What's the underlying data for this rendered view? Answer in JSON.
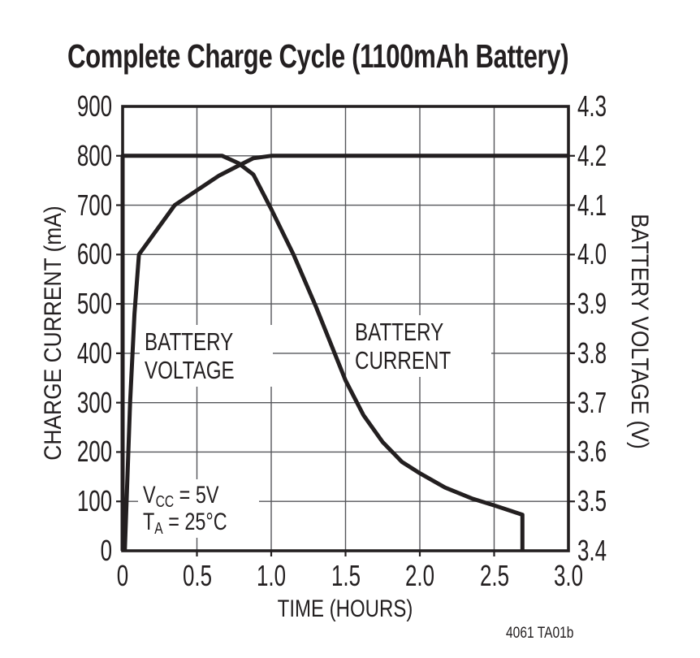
{
  "chart_data": {
    "type": "line",
    "title": "Complete Charge Cycle (1100mAh Battery)",
    "xlabel": "TIME (HOURS)",
    "x_range": [
      0,
      3
    ],
    "x_ticks": [
      "0",
      "0.5",
      "1.0",
      "1.5",
      "2.0",
      "2.5",
      "3.0"
    ],
    "left_axis": {
      "label": "CHARGE CURRENT (mA)",
      "range": [
        0,
        900
      ],
      "ticks": [
        "900",
        "800",
        "700",
        "600",
        "500",
        "400",
        "300",
        "200",
        "100",
        "0"
      ]
    },
    "right_axis": {
      "label": "BATTERY VOLTAGE (V)",
      "range": [
        3.4,
        4.3
      ],
      "ticks": [
        "4.3",
        "4.2",
        "4.1",
        "4.0",
        "3.9",
        "3.8",
        "3.7",
        "3.6",
        "3.5",
        "3.4"
      ]
    },
    "grid": true,
    "legend_position": "none",
    "series": [
      {
        "name": "battery-voltage",
        "axis": "right",
        "points": [
          [
            0.015,
            3.4
          ],
          [
            0.05,
            3.7
          ],
          [
            0.08,
            3.88
          ],
          [
            0.11,
            4.0
          ],
          [
            0.35,
            4.1
          ],
          [
            0.5,
            4.13
          ],
          [
            0.65,
            4.16
          ],
          [
            0.78,
            4.18
          ],
          [
            0.88,
            4.195
          ],
          [
            1.0,
            4.2
          ],
          [
            3.0,
            4.2
          ]
        ]
      },
      {
        "name": "battery-current",
        "axis": "left",
        "points": [
          [
            0,
            0
          ],
          [
            0,
            800
          ],
          [
            0.67,
            800
          ],
          [
            0.78,
            785
          ],
          [
            0.88,
            762
          ],
          [
            1.0,
            692
          ],
          [
            1.15,
            600
          ],
          [
            1.3,
            495
          ],
          [
            1.5,
            345
          ],
          [
            1.62,
            275
          ],
          [
            1.75,
            220
          ],
          [
            1.88,
            180
          ],
          [
            2.0,
            157
          ],
          [
            2.17,
            128
          ],
          [
            2.35,
            106
          ],
          [
            2.5,
            92
          ],
          [
            2.62,
            80
          ],
          [
            2.69,
            73
          ],
          [
            2.69,
            0
          ]
        ]
      }
    ],
    "annotations": {
      "voltage_label_line1": "BATTERY",
      "voltage_label_line2": "VOLTAGE",
      "current_label_line1": "BATTERY",
      "current_label_line2": "CURRENT",
      "cond1_main": "V",
      "cond1_sub": "CC",
      "cond1_rest": " = 5V",
      "cond2_main": "T",
      "cond2_sub": "A",
      "cond2_rest": " = 25°C"
    },
    "footer_code": "4061 TA01b",
    "colors": {
      "line": "#231f20",
      "grid": "#55565a",
      "background": "#ffffff"
    }
  }
}
